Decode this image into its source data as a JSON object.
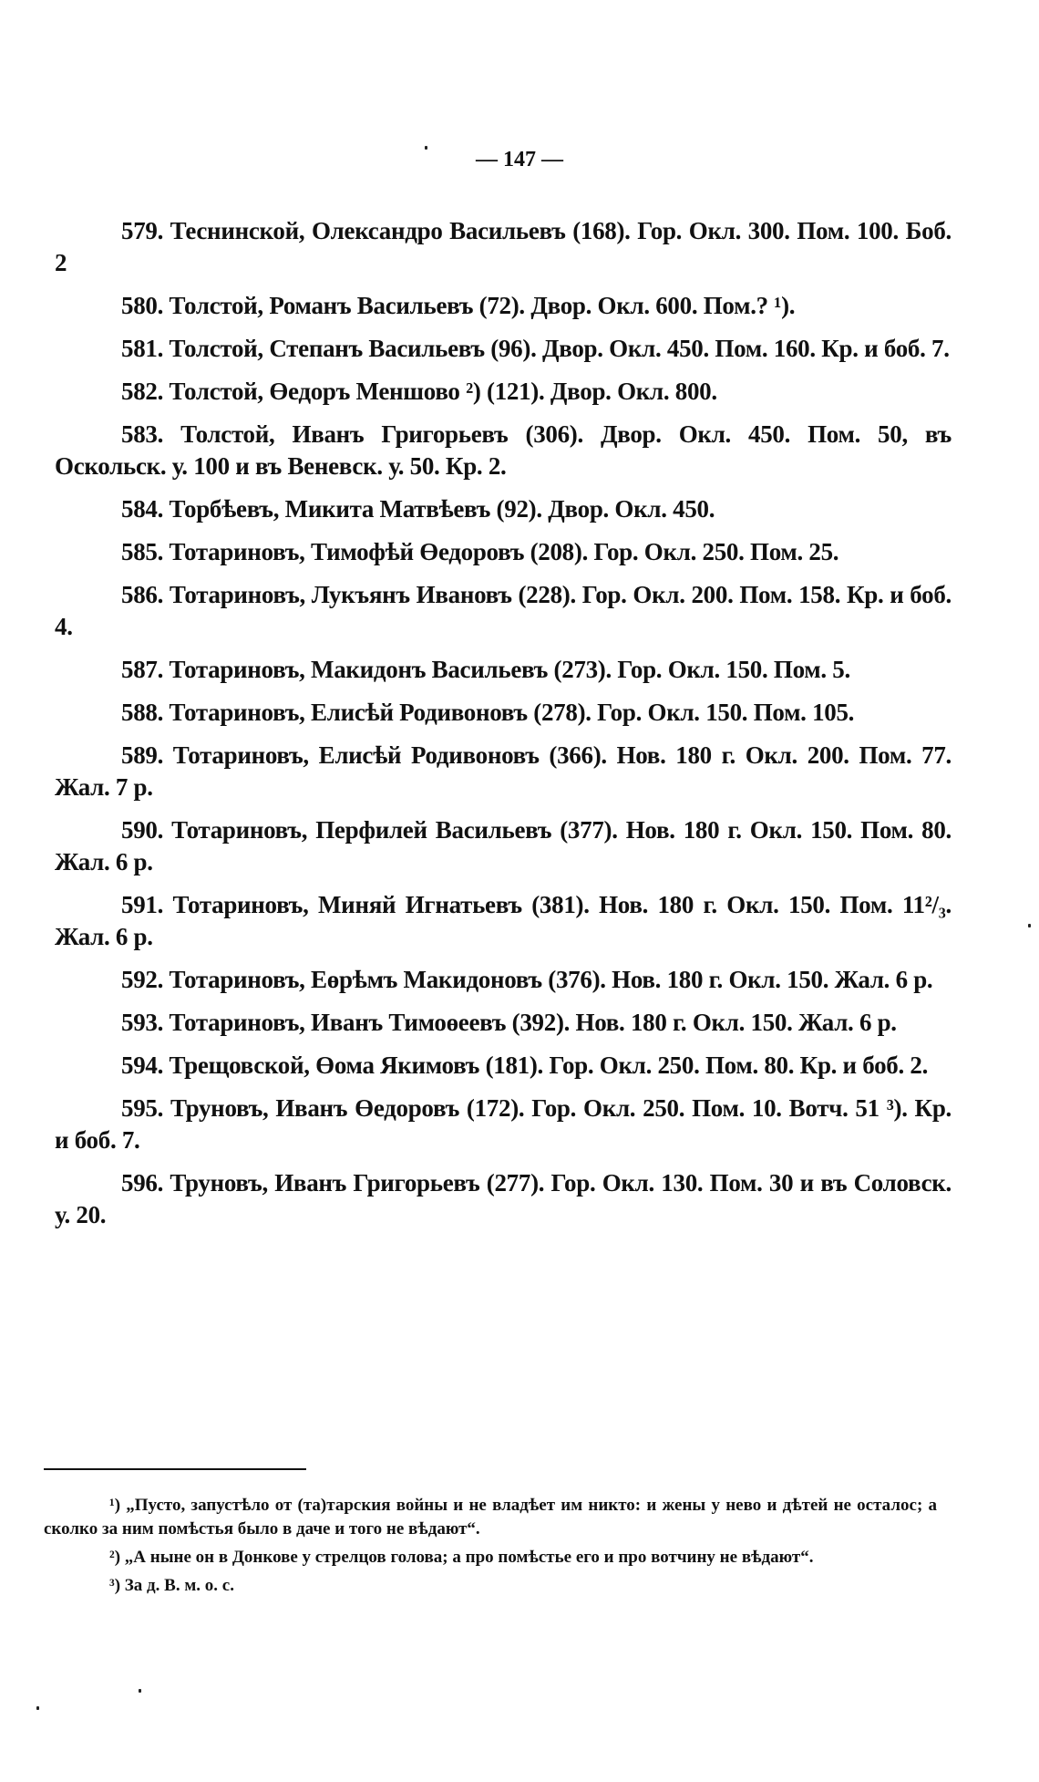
{
  "page_number": "— 147 —",
  "entries": [
    "579. Теснинской, Олександро Васильевъ (168). Гор. Окл. 300. Пом. 100. Боб. 2",
    "580. Толстой, Романъ Васильевъ (72). Двор. Окл. 600. Пом.? ¹).",
    "581. Толстой, Степанъ Васильевъ (96). Двор. Окл. 450. Пом. 160. Кр. и боб. 7.",
    "582. Толстой, Өедоръ Меншово ²) (121). Двор. Окл. 800.",
    "583. Толстой, Иванъ Григорьевъ (306). Двор. Окл. 450. Пом. 50, въ Оскольск. у. 100 и въ Веневск. у. 50. Кр. 2.",
    "584. Торбѣевъ, Микита Матвѣевъ (92). Двор. Окл. 450.",
    "585. Тотариновъ, Тимофѣй Өедоровъ (208). Гор. Окл. 250. Пом. 25.",
    "586. Тотариновъ, Лукъянъ Ивановъ (228). Гор. Окл. 200. Пом. 158. Кр. и боб. 4.",
    "587. Тотариновъ, Макидонъ Васильевъ (273). Гор. Окл. 150. Пом. 5.",
    "588. Тотариновъ, Елисѣй Родивоновъ (278). Гор. Окл. 150. Пом. 105.",
    "589. Тотариновъ, Елисѣй Родивоновъ (366). Нов. 180 г. Окл. 200. Пом. 77. Жал. 7 р.",
    "590. Тотариновъ, Перфилей Васильевъ (377). Нов. 180 г. Окл. 150. Пом. 80. Жал. 6 р.",
    "591. Тотариновъ, Миняй Игнатьевъ (381). Нов. 180 г. Окл. 150. Пом. 11²/₃. Жал. 6 р.",
    "592. Тотариновъ, Еөрѣмъ Макидоновъ (376). Нов. 180 г. Окл. 150. Жал. 6 р.",
    "593. Тотариновъ, Иванъ Тимоөеевъ (392). Нов. 180 г. Окл. 150. Жал. 6 р.",
    "594. Трещовской, Өома Якимовъ (181). Гор. Окл. 250. Пом. 80. Кр. и боб. 2.",
    "595. Труновъ, Иванъ Өедоровъ (172). Гор. Окл. 250. Пом. 10. Вотч. 51 ³). Кр. и боб. 7.",
    "596. Труновъ, Иванъ Григорьевъ (277). Гор. Окл. 130. Пом. 30 и въ Соловск. у. 20."
  ],
  "footnotes": [
    "¹) „Пусто, запустѣло от (та)тарския войны и не владѣет им никто: и жены у нево и дѣтей не осталос; а сколко за ним помѣстья было в даче и того не вѣдают“.",
    "²) „А ныне он в Донкове у стрелцов голова; а про помѣстье его и про вотчину не вѣдают“.",
    "³) За д. В. м. о. с."
  ]
}
